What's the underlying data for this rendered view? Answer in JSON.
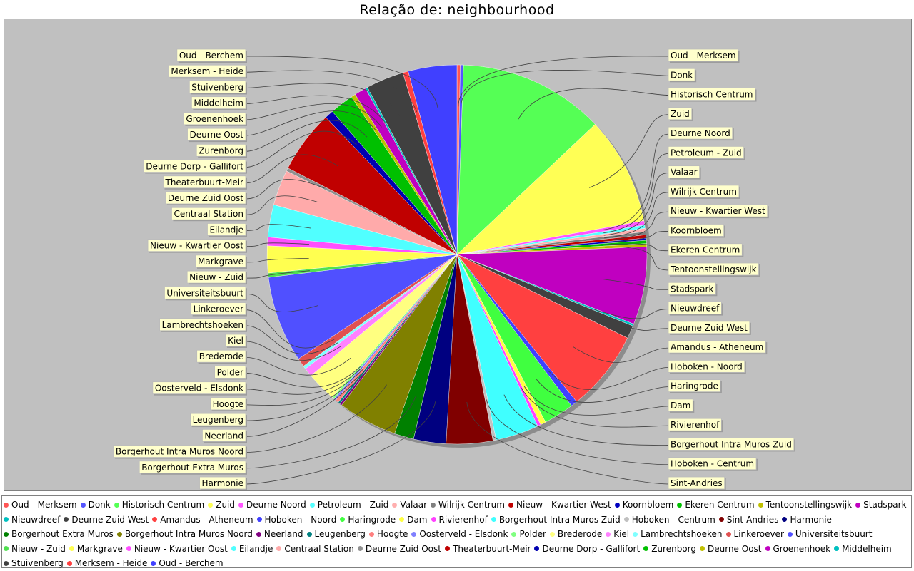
{
  "chart_data": {
    "type": "pie",
    "title": "Relação de: neighbourhood",
    "legend_placement": "bottom",
    "slices": [
      {
        "label": "Oud - Merksem",
        "value": 0.3,
        "color": "#ff5555"
      },
      {
        "label": "Donk",
        "value": 0.3,
        "color": "#5555ff"
      },
      {
        "label": "Historisch Centrum",
        "value": 13.5,
        "color": "#55ff55"
      },
      {
        "label": "Zuid",
        "value": 10.0,
        "color": "#ffff55"
      },
      {
        "label": "Deurne Noord",
        "value": 0.4,
        "color": "#ff55ff"
      },
      {
        "label": "Petroleum - Zuid",
        "value": 0.3,
        "color": "#55ffff"
      },
      {
        "label": "Valaar",
        "value": 0.3,
        "color": "#ffafaf"
      },
      {
        "label": "Wilrijk Centrum",
        "value": 0.3,
        "color": "#808080"
      },
      {
        "label": "Nieuw - Kwartier West",
        "value": 0.3,
        "color": "#c00000"
      },
      {
        "label": "Koornbloem",
        "value": 0.2,
        "color": "#0000c0"
      },
      {
        "label": "Ekeren Centrum",
        "value": 0.3,
        "color": "#00c000"
      },
      {
        "label": "Tentoonstellingswijk",
        "value": 0.3,
        "color": "#c0c000"
      },
      {
        "label": "Stadspark",
        "value": 7.2,
        "color": "#c000c0"
      },
      {
        "label": "Nieuwdreef",
        "value": 0.2,
        "color": "#00c0c0"
      },
      {
        "label": "Deurne Zuid West",
        "value": 1.2,
        "color": "#404040"
      },
      {
        "label": "Amandus - Atheneum",
        "value": 7.5,
        "color": "#ff4040"
      },
      {
        "label": "Hoboken - Noord",
        "value": 0.6,
        "color": "#4040ff"
      },
      {
        "label": "Haringrode",
        "value": 2.8,
        "color": "#40ff40"
      },
      {
        "label": "Dam",
        "value": 0.5,
        "color": "#ffff40"
      },
      {
        "label": "Rivierenhof",
        "value": 0.3,
        "color": "#ff40ff"
      },
      {
        "label": "Borgerhout Intra Muros Zuid",
        "value": 4.0,
        "color": "#40ffff"
      },
      {
        "label": "Hoboken - Centrum",
        "value": 0.3,
        "color": "#c0c0c0"
      },
      {
        "label": "Sint-Andries",
        "value": 4.3,
        "color": "#800000"
      },
      {
        "label": "Harmonie",
        "value": 3.0,
        "color": "#000080"
      },
      {
        "label": "Borgerhout Extra Muros",
        "value": 1.8,
        "color": "#008000"
      },
      {
        "label": "Borgerhout Intra Muros Noord",
        "value": 5.5,
        "color": "#808000"
      },
      {
        "label": "Neerland",
        "value": 0.2,
        "color": "#800080"
      },
      {
        "label": "Leugenberg",
        "value": 0.2,
        "color": "#008080"
      },
      {
        "label": "Hoogte",
        "value": 0.3,
        "color": "#ff8080"
      },
      {
        "label": "Oosterveld - Elsdonk",
        "value": 0.2,
        "color": "#8080ff"
      },
      {
        "label": "Polder",
        "value": 0.2,
        "color": "#80ff80"
      },
      {
        "label": "Brederode",
        "value": 2.8,
        "color": "#ffff80"
      },
      {
        "label": "Kiel",
        "value": 0.8,
        "color": "#ff80ff"
      },
      {
        "label": "Lambrechtshoeken",
        "value": 0.3,
        "color": "#80ffff"
      },
      {
        "label": "Linkeroever",
        "value": 0.8,
        "color": "#e05050"
      },
      {
        "label": "Universiteitsbuurt",
        "value": 8.0,
        "color": "#5050ff"
      },
      {
        "label": "Nieuw - Zuid",
        "value": 0.4,
        "color": "#50e050"
      },
      {
        "label": "Markgrave",
        "value": 2.5,
        "color": "#ffff50"
      },
      {
        "label": "Nieuw - Kwartier Oost",
        "value": 0.8,
        "color": "#ff50ff"
      },
      {
        "label": "Eilandje",
        "value": 3.0,
        "color": "#50ffff"
      },
      {
        "label": "Centraal Station",
        "value": 3.3,
        "color": "#ffaaaa"
      },
      {
        "label": "Deurne Zuid Oost",
        "value": 0.3,
        "color": "#909090"
      },
      {
        "label": "Theaterbuurt-Meir",
        "value": 5.8,
        "color": "#c00000"
      },
      {
        "label": "Deurne Dorp - Gallifort",
        "value": 0.8,
        "color": "#0000b0"
      },
      {
        "label": "Zurenborg",
        "value": 2.2,
        "color": "#00c000"
      },
      {
        "label": "Deurne Oost",
        "value": 0.4,
        "color": "#c0c000"
      },
      {
        "label": "Groenenhoek",
        "value": 1.1,
        "color": "#c000c0"
      },
      {
        "label": "Middelheim",
        "value": 0.2,
        "color": "#00c0c0"
      },
      {
        "label": "Stuivenberg",
        "value": 3.5,
        "color": "#404040"
      },
      {
        "label": "Merksem - Heide",
        "value": 0.5,
        "color": "#ff4040"
      },
      {
        "label": "Oud - Berchem",
        "value": 4.5,
        "color": "#4040ff"
      }
    ]
  }
}
